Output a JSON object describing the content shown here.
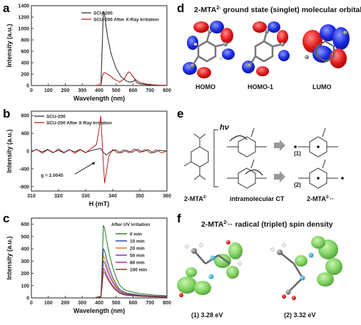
{
  "panels": {
    "a": "a",
    "b": "b",
    "c": "c",
    "d": "d",
    "e": "e",
    "f": "f"
  },
  "chart_data": [
    {
      "id": "a",
      "type": "line",
      "xlabel": "Wavelength (nm)",
      "ylabel": "Intensity (a.u.)",
      "xlim": [
        0,
        800
      ],
      "ylim": [
        0,
        1400
      ],
      "xticks": [
        0,
        100,
        200,
        300,
        400,
        500,
        600,
        700,
        800
      ],
      "yticks": [
        0,
        200,
        400,
        600,
        800,
        1000,
        1200,
        1400
      ],
      "legend_position": "top-right",
      "series": [
        {
          "name": "SCU-200",
          "color": "#333333",
          "x": [
            380,
            410,
            418,
            425,
            430,
            440,
            450,
            470,
            500,
            530,
            560,
            580,
            600,
            610,
            620,
            640,
            680,
            720,
            760,
            800
          ],
          "y": [
            2,
            5,
            700,
            1300,
            1280,
            1050,
            850,
            560,
            300,
            150,
            80,
            60,
            70,
            100,
            55,
            30,
            15,
            8,
            5,
            3
          ]
        },
        {
          "name": "SCU-200 After X-Ray Irritation",
          "color": "#b22222",
          "x": [
            380,
            410,
            418,
            425,
            430,
            440,
            460,
            490,
            520,
            550,
            565,
            575,
            585,
            600,
            620,
            640,
            680,
            720,
            760,
            800
          ],
          "y": [
            2,
            5,
            150,
            210,
            225,
            215,
            180,
            110,
            60,
            120,
            210,
            240,
            220,
            150,
            90,
            55,
            25,
            12,
            6,
            3
          ]
        }
      ]
    },
    {
      "id": "b",
      "type": "line",
      "xlabel": "H (mT)",
      "ylabel": "Intensity (a.u.)",
      "xlim": [
        310,
        360
      ],
      "ylim": [
        -900,
        900
      ],
      "xticks": [
        310,
        320,
        330,
        340,
        350,
        360
      ],
      "yticks": [
        -800,
        -400,
        0,
        400,
        800
      ],
      "legend_position": "top-left",
      "annotation": "g = 2.0045",
      "series": [
        {
          "name": "SCU-200",
          "color": "#333333",
          "x": [
            310,
            312,
            314,
            316,
            318,
            320,
            322,
            324,
            326,
            328,
            330,
            332,
            334,
            335.5,
            336.5,
            337.5,
            339,
            341,
            343,
            345,
            347,
            349,
            351,
            353,
            355,
            357,
            360
          ],
          "y": [
            0,
            30,
            -20,
            40,
            -30,
            20,
            -40,
            30,
            -20,
            40,
            -30,
            10,
            40,
            60,
            -20,
            -90,
            -20,
            30,
            -40,
            20,
            -30,
            40,
            -20,
            30,
            -40,
            20,
            0
          ]
        },
        {
          "name": "SCU-200 After X-Ray Irritation",
          "color": "#b22222",
          "x": [
            310,
            312,
            314,
            316,
            318,
            320,
            322,
            324,
            326,
            328,
            330,
            332,
            334,
            335,
            335.6,
            336.3,
            337,
            337.6,
            338.5,
            340,
            342,
            344,
            346,
            348,
            350,
            352,
            354,
            356,
            358,
            360
          ],
          "y": [
            -20,
            40,
            -50,
            30,
            -40,
            50,
            -30,
            40,
            -50,
            30,
            -40,
            60,
            150,
            500,
            790,
            0,
            -720,
            -500,
            -120,
            40,
            -50,
            30,
            -40,
            50,
            -30,
            40,
            -50,
            30,
            -40,
            0
          ]
        }
      ]
    },
    {
      "id": "c",
      "type": "line",
      "xlabel": "Wavelength (nm)",
      "ylabel": "Intensity (a.u.)",
      "xlim": [
        0,
        800
      ],
      "ylim": [
        0,
        650
      ],
      "xticks": [
        0,
        100,
        200,
        300,
        400,
        500,
        600,
        700,
        800
      ],
      "yticks": [
        0,
        100,
        200,
        300,
        400,
        500,
        600
      ],
      "legend_title": "After UV irritation",
      "legend_position": "top-right",
      "series": [
        {
          "name": "0 min",
          "color": "#1a7a1a",
          "peak": 590
        },
        {
          "name": "10 min",
          "color": "#1f3f9f",
          "peak": 400
        },
        {
          "name": "20 min",
          "color": "#e07010",
          "peak": 340
        },
        {
          "name": "50 min",
          "color": "#7030a0",
          "peak": 300
        },
        {
          "name": "80 min",
          "color": "#c0187a",
          "peak": 240
        },
        {
          "name": "100 min",
          "color": "#6b3a1e",
          "peak": 215
        }
      ]
    }
  ],
  "panel_d": {
    "title": "2-MTA",
    "title_sup": "2-",
    "title_rest": " ground state (singlet) molecular orbitals",
    "labels": [
      "HOMO",
      "HOMO-1",
      "LUMO"
    ]
  },
  "panel_e": {
    "hv": "hν",
    "label_left": "2-MTA",
    "label_left_sup": "2-",
    "label_mid": "intramolecular CT",
    "label_right": "2-MTA",
    "label_right_sup": "2-",
    "label_right_suffix": "··",
    "path1": "(1)",
    "path2": "(2)"
  },
  "panel_f": {
    "title": "2-MTA",
    "title_sup": "2-",
    "title_rest": "·· radical (triplet) spin density",
    "energies": [
      "(1)  3.28 eV",
      "(2)  3.32 eV"
    ]
  }
}
